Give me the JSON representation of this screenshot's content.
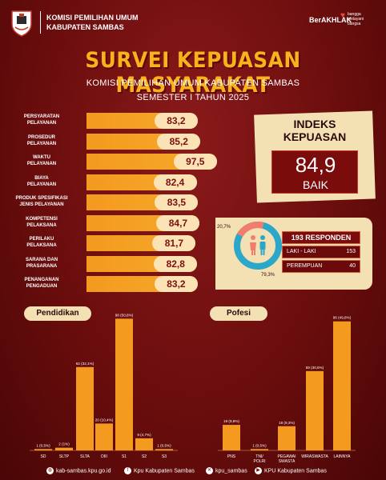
{
  "header": {
    "org_line1": "KOMISI PEMILIHAN UMUM",
    "org_line2": "KABUPATEN SAMBAS",
    "berakhlak": "BerAKHLAK",
    "bangga_line1": "bangga",
    "bangga_line2": "melayani",
    "bangga_line3": "bangsa"
  },
  "title": "SURVEI KEPUASAN MASYARAKAT",
  "subtitle1": "KOMISI PEMILIHAN UMUM KABUPATEN SAMBAS",
  "subtitle2": "SEMESTER I TAHUN 2025",
  "indeks": {
    "title_line1": "INDEKS",
    "title_line2": "KEPUASAN",
    "score": "84,9",
    "category": "BAIK"
  },
  "respondents": {
    "header": "193 RESPONDEN",
    "rows": [
      {
        "label": "LAKI - LAKI",
        "value": "153"
      },
      {
        "label": "PEREMPUAN",
        "value": "40"
      }
    ],
    "pct_female": "20,7%",
    "pct_male": "79,3%",
    "female_fraction": 0.207,
    "female_color": "#f47c6c",
    "male_color": "#2aa7c9"
  },
  "footer": {
    "website": "kab-sambas.kpu.go.id",
    "facebook": "Kpu Kabupaten Sambas",
    "x": "kpu_sambas",
    "youtube": "KPU Kabupaten Sambas"
  },
  "colors": {
    "accent": "#f39a1f",
    "background": "#6b0d0d",
    "cream": "#f3e1b4"
  },
  "chart_data": [
    {
      "type": "bar",
      "orientation": "horizontal",
      "categories": [
        [
          "PERSYARATAN",
          "PELAYANAN"
        ],
        [
          "PROSEDUR",
          "PELAYANAN"
        ],
        [
          "WAKTU",
          "PELAYANAN"
        ],
        [
          "BIAYA",
          "PELAYANAN"
        ],
        [
          "PRODUK SPESIFIKASI",
          "JENIS PELAYANAN"
        ],
        [
          "KOMPETENSI",
          "PELAKSANA"
        ],
        [
          "PERILAKU",
          "PELAKSANA"
        ],
        [
          "SARANA DAN",
          "PRASARANA"
        ],
        [
          "PENANGANAN",
          "PENGADUAN"
        ]
      ],
      "values": [
        83.2,
        85.2,
        97.5,
        82.4,
        83.5,
        84.7,
        81.7,
        82.8,
        83.2
      ],
      "labels": [
        "83,2",
        "85,2",
        "97,5",
        "82,4",
        "83,5",
        "84,7",
        "81,7",
        "82,8",
        "83,2"
      ],
      "title": "",
      "xlim": [
        0,
        100
      ]
    },
    {
      "type": "bar",
      "title": "Pendidikan",
      "categories": [
        "SD",
        "SLTP",
        "SLTA",
        "DIII",
        "S1",
        "S2",
        "S3"
      ],
      "values": [
        1,
        2,
        62,
        20,
        98,
        9,
        1
      ],
      "labels": [
        "1 (0,5%)",
        "2 (1%)",
        "62 (32,1%)",
        "20 (10,4%)",
        "98 (50,8%)",
        "9 (4,7%)",
        "1 (0,5%)"
      ],
      "ylim": [
        0,
        100
      ]
    },
    {
      "type": "bar",
      "title": "Pofesi",
      "categories": [
        [
          "PNS"
        ],
        [
          "TNI/",
          "POLRI"
        ],
        [
          "PEGAWAI",
          "SWASTA"
        ],
        [
          "WIRASWASTA"
        ],
        [
          "LAINNYA"
        ]
      ],
      "values": [
        19,
        1,
        18,
        59,
        96
      ],
      "labels": [
        "19 (9,8%)",
        "1 (0,5%)",
        "18 (9,3%)",
        "59 (30,6%)",
        "96 (49,8%)"
      ],
      "ylim": [
        0,
        100
      ]
    }
  ]
}
